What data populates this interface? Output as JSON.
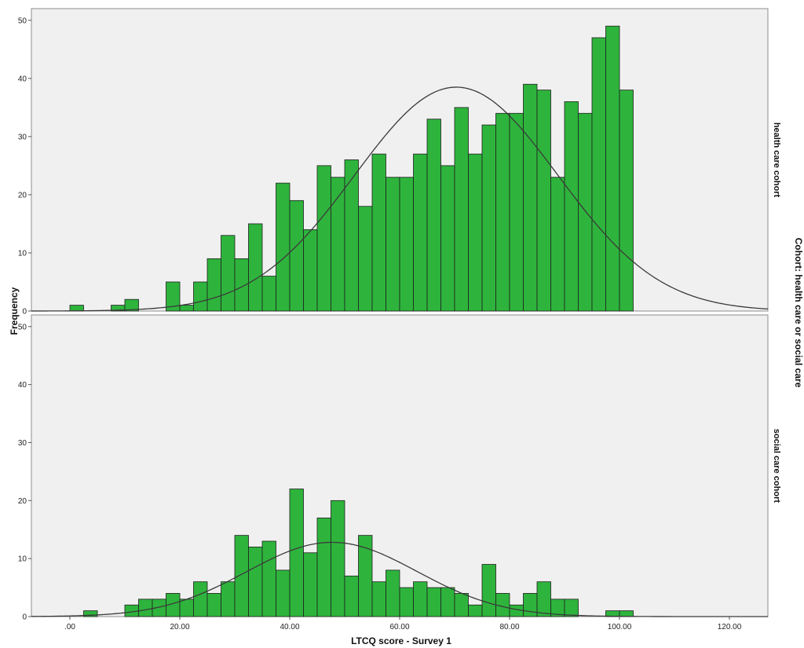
{
  "chart_data": {
    "type": "bar",
    "xlabel": "LTCQ score - Survey 1",
    "ylabel": "Frequency",
    "facet_label": "Cohort: health care or social care",
    "xlim": [
      -7,
      127
    ],
    "ylim": [
      0,
      52
    ],
    "x_ticks": [
      ".00",
      "20.00",
      "40.00",
      "60.00",
      "80.00",
      "100.00",
      "120.00"
    ],
    "x_tick_values": [
      0,
      20,
      40,
      60,
      80,
      100,
      120
    ],
    "y_ticks": [
      0,
      10,
      20,
      30,
      40,
      50
    ],
    "bin_width": 2.5,
    "grid": false,
    "panels": [
      {
        "name": "health care cohort",
        "bins": [
          {
            "x": 1.25,
            "count": 1
          },
          {
            "x": 8.75,
            "count": 1
          },
          {
            "x": 11.25,
            "count": 2
          },
          {
            "x": 18.75,
            "count": 5
          },
          {
            "x": 21.25,
            "count": 1
          },
          {
            "x": 23.75,
            "count": 5
          },
          {
            "x": 26.25,
            "count": 9
          },
          {
            "x": 28.75,
            "count": 13
          },
          {
            "x": 31.25,
            "count": 9
          },
          {
            "x": 33.75,
            "count": 15
          },
          {
            "x": 36.25,
            "count": 6
          },
          {
            "x": 38.75,
            "count": 22
          },
          {
            "x": 41.25,
            "count": 19
          },
          {
            "x": 43.75,
            "count": 14
          },
          {
            "x": 46.25,
            "count": 25
          },
          {
            "x": 48.75,
            "count": 23
          },
          {
            "x": 51.25,
            "count": 26
          },
          {
            "x": 53.75,
            "count": 18
          },
          {
            "x": 56.25,
            "count": 27
          },
          {
            "x": 58.75,
            "count": 23
          },
          {
            "x": 61.25,
            "count": 23
          },
          {
            "x": 63.75,
            "count": 27
          },
          {
            "x": 66.25,
            "count": 33
          },
          {
            "x": 68.75,
            "count": 25
          },
          {
            "x": 71.25,
            "count": 35
          },
          {
            "x": 73.75,
            "count": 27
          },
          {
            "x": 76.25,
            "count": 32
          },
          {
            "x": 78.75,
            "count": 34
          },
          {
            "x": 81.25,
            "count": 34
          },
          {
            "x": 83.75,
            "count": 39
          },
          {
            "x": 86.25,
            "count": 38
          },
          {
            "x": 88.75,
            "count": 23
          },
          {
            "x": 91.25,
            "count": 36
          },
          {
            "x": 93.75,
            "count": 34
          },
          {
            "x": 96.25,
            "count": 47
          },
          {
            "x": 98.75,
            "count": 49
          },
          {
            "x": 101.25,
            "count": 38
          }
        ],
        "normal_curve": {
          "mean": 70.3,
          "sd": 18.5,
          "peak": 38.5
        }
      },
      {
        "name": "social care cohort",
        "bins": [
          {
            "x": 3.75,
            "count": 1
          },
          {
            "x": 11.25,
            "count": 2
          },
          {
            "x": 13.75,
            "count": 3
          },
          {
            "x": 16.25,
            "count": 3
          },
          {
            "x": 18.75,
            "count": 4
          },
          {
            "x": 21.25,
            "count": 3
          },
          {
            "x": 23.75,
            "count": 6
          },
          {
            "x": 26.25,
            "count": 4
          },
          {
            "x": 28.75,
            "count": 6
          },
          {
            "x": 31.25,
            "count": 14
          },
          {
            "x": 33.75,
            "count": 12
          },
          {
            "x": 36.25,
            "count": 13
          },
          {
            "x": 38.75,
            "count": 8
          },
          {
            "x": 41.25,
            "count": 22
          },
          {
            "x": 43.75,
            "count": 11
          },
          {
            "x": 46.25,
            "count": 17
          },
          {
            "x": 48.75,
            "count": 20
          },
          {
            "x": 51.25,
            "count": 7
          },
          {
            "x": 53.75,
            "count": 14
          },
          {
            "x": 56.25,
            "count": 6
          },
          {
            "x": 58.75,
            "count": 8
          },
          {
            "x": 61.25,
            "count": 5
          },
          {
            "x": 63.75,
            "count": 6
          },
          {
            "x": 66.25,
            "count": 5
          },
          {
            "x": 68.75,
            "count": 5
          },
          {
            "x": 71.25,
            "count": 4
          },
          {
            "x": 73.75,
            "count": 2
          },
          {
            "x": 76.25,
            "count": 9
          },
          {
            "x": 78.75,
            "count": 4
          },
          {
            "x": 81.25,
            "count": 2
          },
          {
            "x": 83.75,
            "count": 4
          },
          {
            "x": 86.25,
            "count": 6
          },
          {
            "x": 88.75,
            "count": 3
          },
          {
            "x": 91.25,
            "count": 3
          },
          {
            "x": 98.75,
            "count": 1
          },
          {
            "x": 101.25,
            "count": 1
          }
        ],
        "normal_curve": {
          "mean": 47.7,
          "sd": 15.5,
          "peak": 12.8
        }
      }
    ],
    "colors": {
      "bar": "#2eb43c",
      "bar_outline": "#1e1e1e",
      "panel_bg": "#f0f0f0",
      "curve": "#3a3a3a"
    }
  }
}
